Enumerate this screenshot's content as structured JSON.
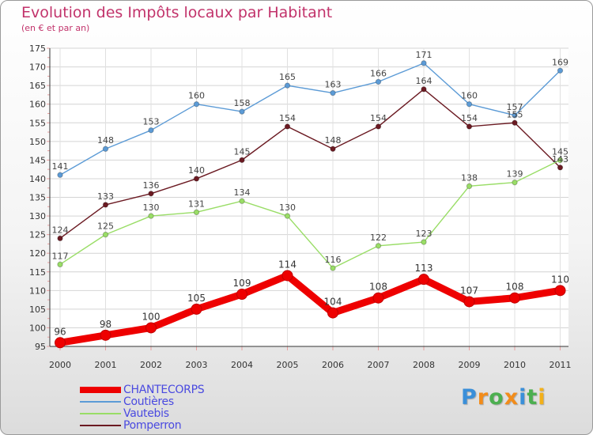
{
  "chart_data": {
    "type": "line",
    "title": "Evolution des Impôts locaux par Habitant",
    "subtitle": "(en € et par an)",
    "xlabel": "",
    "ylabel": "",
    "categories": [
      "2000",
      "2001",
      "2002",
      "2003",
      "2004",
      "2005",
      "2006",
      "2007",
      "2008",
      "2009",
      "2010",
      "2011"
    ],
    "ylim": [
      95,
      175
    ],
    "yticks": [
      95,
      100,
      105,
      110,
      115,
      120,
      125,
      130,
      135,
      140,
      145,
      150,
      155,
      160,
      165,
      170,
      175
    ],
    "grid": true,
    "legend_position": "bottom-left",
    "series": [
      {
        "name": "CHANTECORPS",
        "color": "#ee0000",
        "values": [
          96,
          98,
          100,
          105,
          109,
          114,
          104,
          108,
          113,
          107,
          108,
          110
        ]
      },
      {
        "name": "Coutières",
        "color": "#5c9bd6",
        "values": [
          141,
          148,
          153,
          160,
          158,
          165,
          163,
          166,
          171,
          160,
          157,
          169
        ]
      },
      {
        "name": "Vautebis",
        "color": "#99dd66",
        "values": [
          117,
          125,
          130,
          131,
          134,
          130,
          116,
          122,
          123,
          138,
          139,
          145
        ]
      },
      {
        "name": "Pomperron",
        "color": "#6b1a22",
        "values": [
          124,
          133,
          136,
          140,
          145,
          154,
          148,
          154,
          164,
          154,
          155,
          143
        ]
      }
    ],
    "data_labels": {
      "Coutières": [
        "141",
        "148",
        "153",
        "160",
        "158",
        "165",
        "163",
        "166",
        "171",
        "160",
        "157",
        "169"
      ],
      "Pomperron": [
        "124",
        "133",
        "136",
        "140",
        "145",
        "154",
        "148",
        "154",
        "164",
        "154",
        "155",
        "143"
      ],
      "Vautebis": [
        "117",
        "125",
        "130",
        "131",
        "134",
        "130",
        "116",
        "122",
        "123",
        "138",
        "139",
        "145"
      ],
      "CHANTECORPS": [
        "96",
        "98",
        "100",
        "105",
        "109",
        "114",
        "104",
        "108",
        "113",
        "107",
        "108",
        "110"
      ]
    }
  },
  "logo": {
    "letters": [
      "P",
      "r",
      "o",
      "x",
      "i",
      "t",
      "i"
    ],
    "colors": [
      "#3a8fd9",
      "#f28c1a",
      "#4caf50",
      "#f28c1a",
      "#3a8fd9",
      "#4caf50",
      "#f2b01a"
    ]
  }
}
